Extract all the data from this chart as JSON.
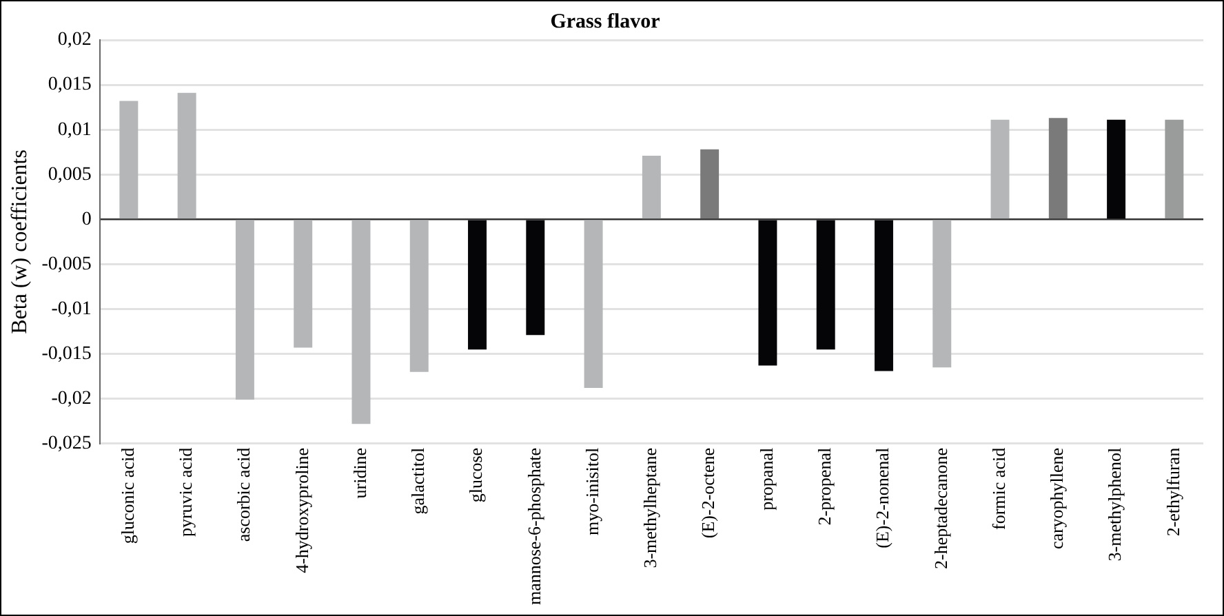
{
  "chart_data": {
    "type": "bar",
    "title": "Grass flavor",
    "ylabel": "Beta (w) coefficients",
    "categories": [
      "gluconic acid",
      "pyruvic acid",
      "ascorbic acid",
      "4-hydroxyproline",
      "uridine",
      "galactitol",
      "glucose",
      "mannose-6-phosphate",
      "myo-inisitol",
      "3-methylheptane",
      "(E)-2-octene",
      "propanal",
      "2-propenal",
      "(E)-2-nonenal",
      "2-heptadecanone",
      "formic acid",
      "caryophyllene",
      "3-methylphenol",
      "2-ethylfuran"
    ],
    "values": [
      0.0132,
      0.0141,
      -0.0201,
      -0.0143,
      -0.0228,
      -0.017,
      -0.0145,
      -0.0129,
      -0.0188,
      0.0071,
      0.0078,
      -0.0163,
      -0.0145,
      -0.0169,
      -0.0165,
      0.0111,
      0.0113,
      0.0111,
      0.0111
    ],
    "colors": [
      "#b4b6b7",
      "#b4b6b7",
      "#b4b6b7",
      "#b4b6b7",
      "#b4b6b7",
      "#b4b6b7",
      "#050508",
      "#050508",
      "#b4b6b7",
      "#b4b6b7",
      "#7a7a7a",
      "#050508",
      "#050508",
      "#050508",
      "#b4b6b7",
      "#b4b6b7",
      "#7a7a7a",
      "#050508",
      "#9a9c9c"
    ],
    "ylim": [
      -0.025,
      0.02
    ],
    "yticks": [
      {
        "value": -0.025,
        "label": "-0,025"
      },
      {
        "value": -0.02,
        "label": "-0,02"
      },
      {
        "value": -0.015,
        "label": "-0,015"
      },
      {
        "value": -0.01,
        "label": "-0,01"
      },
      {
        "value": -0.005,
        "label": "-0,005"
      },
      {
        "value": 0,
        "label": "0"
      },
      {
        "value": 0.005,
        "label": "0,005"
      },
      {
        "value": 0.01,
        "label": "0,01"
      },
      {
        "value": 0.015,
        "label": "0,015"
      },
      {
        "value": 0.02,
        "label": "0,02"
      }
    ],
    "grid": "y",
    "legend": false
  }
}
